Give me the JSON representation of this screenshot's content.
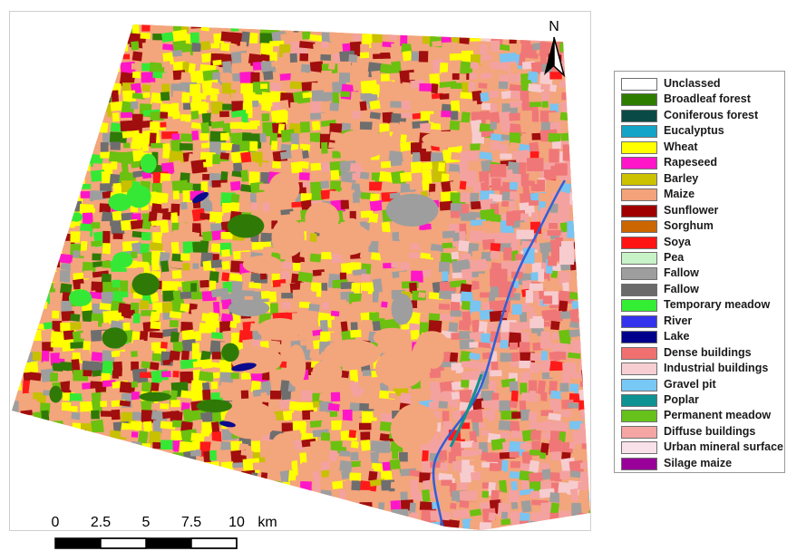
{
  "map": {
    "north_label": "N",
    "palette": {
      "maize": "#f3a57c",
      "wheat": "#ffff00",
      "sunflower": "#a10e0e",
      "broadleaf": "#2f7a06",
      "perm_meadow": "#6cc010",
      "temp_meadow": "#35e836",
      "fallow_light": "#9e9e9e",
      "fallow_dark": "#6e6e6e",
      "rapeseed": "#ff16c8",
      "barley": "#c8c000",
      "dense_build": "#f07777",
      "diffuse_build": "#f4a2a0",
      "industrial": "#f6cccf",
      "gravel": "#79c4f0",
      "soya": "#ff1a1a",
      "lake": "#0a0a8c",
      "river": "#2f5fd8",
      "poplar": "#129090",
      "silage": "#9a009a"
    }
  },
  "scale_bar": {
    "labels": [
      "0",
      "2.5",
      "5",
      "7.5",
      "10"
    ],
    "unit": "km"
  },
  "legend": {
    "items": [
      {
        "label": "Unclassed",
        "color": "#ffffff"
      },
      {
        "label": "Broadleaf forest",
        "color": "#2e7d00"
      },
      {
        "label": "Coniferous forest",
        "color": "#0a4a46"
      },
      {
        "label": "Eucalyptus",
        "color": "#14a4c8"
      },
      {
        "label": "Wheat",
        "color": "#ffff00"
      },
      {
        "label": "Rapeseed",
        "color": "#ff16c8"
      },
      {
        "label": "Barley",
        "color": "#cdc200"
      },
      {
        "label": "Maize",
        "color": "#f4a27a"
      },
      {
        "label": "Sunflower",
        "color": "#a00000"
      },
      {
        "label": "Sorghum",
        "color": "#cc6600"
      },
      {
        "label": "Soya",
        "color": "#ff1414"
      },
      {
        "label": "Pea",
        "color": "#c8f2c8"
      },
      {
        "label": "Fallow",
        "color": "#9e9e9e"
      },
      {
        "label": "Fallow",
        "color": "#6a6a6a"
      },
      {
        "label": "Temporary meadow",
        "color": "#33ee33"
      },
      {
        "label": "River",
        "color": "#3333ee"
      },
      {
        "label": "Lake",
        "color": "#00008c"
      },
      {
        "label": "Dense buildings",
        "color": "#f07070"
      },
      {
        "label": "Industrial buildings",
        "color": "#f7cfd2"
      },
      {
        "label": "Gravel pit",
        "color": "#78c8f5"
      },
      {
        "label": "Poplar",
        "color": "#0f9292"
      },
      {
        "label": "Permanent meadow",
        "color": "#66c21a"
      },
      {
        "label": "Diffuse buildings",
        "color": "#f5a5a3"
      },
      {
        "label": "Urban mineral surface",
        "color": "#f9e1ea"
      },
      {
        "label": "Silage maize",
        "color": "#990099"
      }
    ]
  }
}
